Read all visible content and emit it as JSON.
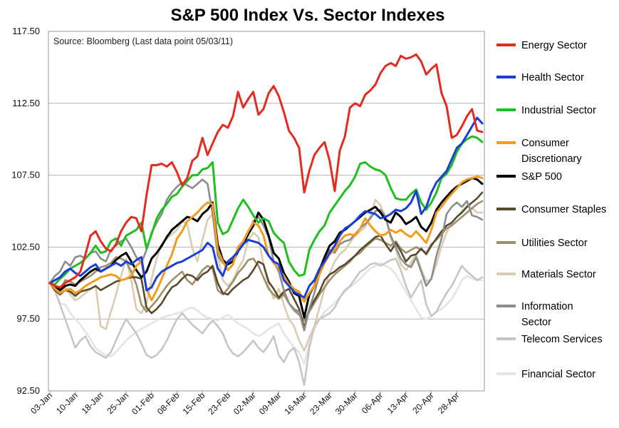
{
  "chart_data": {
    "type": "line",
    "title": "S&P 500 Index Vs. Sector Indexes",
    "annotation": "Source: Bloomberg (Last data point 05/03/11)",
    "ylim": [
      92.5,
      117.5
    ],
    "y_ticks": [
      "117.50",
      "112.50",
      "107.50",
      "102.50",
      "97.50",
      "92.50"
    ],
    "y_tick_values": [
      117.5,
      112.5,
      107.5,
      102.5,
      97.5,
      92.5
    ],
    "x_count": 86,
    "x_tick_labels": [
      "03-Jan",
      "10-Jan",
      "18-Jan",
      "25-Jan",
      "01-Feb",
      "08-Feb",
      "15-Feb",
      "23-Feb",
      "02-Mar",
      "09-Mar",
      "16-Mar",
      "23-Mar",
      "30-Mar",
      "06-Apr",
      "13-Apr",
      "20-Apr",
      "28-Apr"
    ],
    "x_tick_index": [
      0,
      5,
      10,
      15,
      20,
      25,
      30,
      35,
      40,
      45,
      50,
      55,
      60,
      65,
      70,
      75,
      80
    ],
    "series": [
      {
        "name": "Financial Sector",
        "legend": [
          "Financial Sector"
        ],
        "color": "#e4e4e4",
        "values": [
          100,
          99.4,
          98.6,
          98.5,
          97.9,
          97.5,
          97.1,
          96.6,
          96.1,
          95.5,
          95.2,
          95,
          94.9,
          95.2,
          95.6,
          96,
          96.3,
          96.6,
          96.8,
          97,
          97.2,
          97.4,
          97.6,
          97.7,
          97.8,
          97.9,
          98,
          98.2,
          98.3,
          98.1,
          97.8,
          97.6,
          97.5,
          97.4,
          97.6,
          97.8,
          97.5,
          97.2,
          97,
          96.8,
          96.5,
          96.3,
          96.5,
          96.8,
          97,
          97.2,
          96.5,
          96,
          95.5,
          95.2,
          94.4,
          95.8,
          96.8,
          97.5,
          98,
          98.3,
          98.6,
          99,
          99.4,
          99.7,
          100,
          100.3,
          100.7,
          101,
          101.2,
          101.4,
          101.2,
          101,
          100.6,
          100,
          99.4,
          98.8,
          98.2,
          97.6,
          97.5,
          97.7,
          98,
          98.2,
          98.5,
          98.9,
          99.5,
          100.2,
          100.5,
          100.3,
          100.2,
          100.2
        ]
      },
      {
        "name": "Telecom Services",
        "legend": [
          "Telecom Services"
        ],
        "color": "#c6c6c6",
        "values": [
          100,
          99.5,
          98.5,
          97.5,
          96.5,
          95.5,
          96,
          96.3,
          95.6,
          95.2,
          95,
          94.8,
          95.2,
          96,
          96.8,
          97.5,
          97,
          96.5,
          95.8,
          95,
          94.8,
          95,
          95.4,
          96,
          96.8,
          97.5,
          97.9,
          97.5,
          97.1,
          96.8,
          96.5,
          97,
          97.4,
          97,
          96.5,
          95.6,
          95.1,
          94.9,
          95.2,
          95.6,
          96,
          95.5,
          95.2,
          95.7,
          96.3,
          95,
          94.5,
          95.2,
          95.5,
          94.5,
          92.9,
          95.5,
          97,
          97.5,
          97.7,
          97.9,
          98.3,
          99,
          99.5,
          99.8,
          100.3,
          100.8,
          101,
          101.3,
          101.4,
          101.2,
          101.4,
          101.6,
          101.7,
          100.9,
          99.8,
          99,
          99.6,
          100.2,
          98.5,
          97.7,
          98,
          98.7,
          99.3,
          99.8,
          100.5,
          101.2,
          100.8,
          100.5,
          100.2,
          100.4
        ]
      },
      {
        "name": "Materials Sector",
        "legend": [
          "Materials Sector"
        ],
        "color": "#d8cdae",
        "values": [
          100,
          99.8,
          99.4,
          99.7,
          99.2,
          98.8,
          99,
          99.3,
          99.6,
          99.8,
          97,
          96.8,
          98,
          99.2,
          100.5,
          101.7,
          100.2,
          98.2,
          97.9,
          98.6,
          100.3,
          101.7,
          102.7,
          103.1,
          103.4,
          103.7,
          104.3,
          104.1,
          102.4,
          101.5,
          103,
          104.4,
          104.8,
          101.9,
          100.2,
          99.8,
          100.2,
          101,
          101.6,
          103,
          103.5,
          103.2,
          101.3,
          99.8,
          98.9,
          99.6,
          98.5,
          97.5,
          97,
          96,
          95.3,
          96.2,
          97,
          98.3,
          99.6,
          100.7,
          101.5,
          102,
          102.3,
          102.8,
          103.3,
          103.6,
          103.9,
          104.7,
          105.8,
          105.4,
          104.6,
          103.1,
          102.3,
          101.3,
          100.9,
          101.4,
          102,
          101,
          100.1,
          100.3,
          101.3,
          102.6,
          103.5,
          104.2,
          104.6,
          105,
          105.4,
          105.2,
          104.9,
          104.9
        ]
      },
      {
        "name": "Utilities Sector",
        "legend": [
          "Utilities Sector"
        ],
        "color": "#9f8e69",
        "values": [
          100,
          99.8,
          99.5,
          100.2,
          100.1,
          99.9,
          100.1,
          100.3,
          100.5,
          100.8,
          101.1,
          101.2,
          101.4,
          101.8,
          101.7,
          101.5,
          100.8,
          99.9,
          98.5,
          98,
          98.4,
          98.8,
          99.3,
          99.8,
          100.2,
          100.5,
          100.8,
          100.2,
          99.9,
          100.4,
          100.9,
          101.2,
          101,
          99.5,
          99.2,
          99.6,
          100.1,
          100.7,
          101.1,
          101.6,
          101.7,
          101.2,
          100.4,
          99.6,
          99.2,
          98.9,
          99.2,
          98.6,
          98.1,
          97.8,
          97.4,
          98,
          98.6,
          99.2,
          99.7,
          100.2,
          100.6,
          100.9,
          101.2,
          101.5,
          101.9,
          102.1,
          102.5,
          102.8,
          103.1,
          103,
          102.8,
          102.6,
          102.9,
          102.4,
          102.1,
          102.3,
          102.5,
          102.3,
          102.1,
          102.7,
          103,
          103.4,
          103.8,
          104,
          104.3,
          104.6,
          104.9,
          105.2,
          105.5,
          105.7
        ]
      },
      {
        "name": "Consumer Staples",
        "legend": [
          "Consumer Staples"
        ],
        "color": "#5a4a2c",
        "values": [
          100,
          99.5,
          99.2,
          99.5,
          99.4,
          99.1,
          99.4,
          99.5,
          99.6,
          99.8,
          99.5,
          99.7,
          99.9,
          100.1,
          100.2,
          100.3,
          100.4,
          100.4,
          100.3,
          98.3,
          97.9,
          98.2,
          98.6,
          99.2,
          99.7,
          99.9,
          100.3,
          100.6,
          100.5,
          100.2,
          100.6,
          100.8,
          101.2,
          100,
          99.3,
          99.2,
          99.6,
          99.9,
          100.2,
          100.4,
          100.9,
          101.5,
          101.3,
          100.1,
          99.6,
          99,
          99.4,
          99.6,
          98.9,
          98.2,
          96.9,
          98.2,
          98.8,
          99.4,
          100.2,
          100.6,
          100.8,
          101.1,
          101.3,
          101.6,
          101.9,
          102.3,
          102.6,
          102.9,
          103.2,
          103.3,
          102.7,
          102.2,
          102.8,
          102.2,
          101.5,
          101.9,
          102,
          102.4,
          102,
          102.6,
          103.1,
          103.6,
          104,
          104.2,
          104.6,
          104.9,
          105.3,
          105.6,
          105.9,
          106.3
        ]
      },
      {
        "name": "Information Sector",
        "legend": [
          "Information",
          "Sector"
        ],
        "color": "#8c8c8c",
        "values": [
          100,
          100.5,
          100.8,
          101.5,
          101.2,
          101.8,
          101.9,
          101.7,
          102.1,
          102.2,
          101.7,
          101.5,
          102.3,
          102.6,
          102.9,
          103.1,
          102.5,
          101.8,
          101.4,
          102.3,
          103.5,
          104.2,
          104.8,
          105.8,
          106.3,
          106.7,
          107,
          106.8,
          106.6,
          106.9,
          107.2,
          106.9,
          104.8,
          101.9,
          101.4,
          101.3,
          101.7,
          102.3,
          102.7,
          103.5,
          104.3,
          104.6,
          104,
          103.2,
          101.5,
          100.8,
          99.5,
          98.6,
          98.2,
          98,
          96.7,
          98.2,
          99.3,
          100.6,
          101.5,
          102.3,
          102.1,
          102.7,
          102.9,
          103,
          103.4,
          103.8,
          104.1,
          104.5,
          105,
          105.1,
          104.6,
          103.3,
          102.5,
          101.7,
          101.3,
          101.1,
          101.8,
          100.8,
          99.8,
          100.3,
          101.9,
          103.1,
          104.8,
          105.3,
          105.6,
          105.3,
          105.7,
          104.7,
          104.6,
          104.4
        ]
      },
      {
        "name": "S&P 500",
        "legend": [
          "S&P 500"
        ],
        "color": "#000000",
        "values": [
          100,
          99.8,
          99.5,
          99.8,
          99.9,
          99.8,
          100.2,
          100.5,
          100.8,
          101,
          100.8,
          101,
          101.2,
          101.6,
          101.9,
          102.1,
          101.5,
          100.9,
          100.4,
          100.8,
          101.7,
          102.1,
          102.6,
          103.2,
          103.7,
          104,
          104.3,
          104.6,
          104.5,
          104.3,
          104.8,
          105.1,
          105.6,
          102.7,
          101.6,
          101.3,
          101.5,
          102.2,
          102.7,
          103.4,
          104,
          104.9,
          104.4,
          103.3,
          102.1,
          101.7,
          100.7,
          100.1,
          99.3,
          99.1,
          97.6,
          99.2,
          99.8,
          100.9,
          101.8,
          102.6,
          102.9,
          103.5,
          103.7,
          104,
          104.3,
          104.6,
          104.9,
          105.1,
          105.3,
          104.9,
          104.4,
          104.2,
          104.9,
          104.6,
          104.1,
          104.3,
          104.6,
          103.9,
          103.6,
          104.2,
          105.1,
          105.6,
          106,
          106.4,
          106.7,
          106.9,
          107.1,
          107.3,
          107.2,
          106.9
        ]
      },
      {
        "name": "Consumer Discretionary",
        "legend": [
          "Consumer",
          "Discretionary"
        ],
        "color": "#f49b1e",
        "values": [
          100,
          99.6,
          99.3,
          99.5,
          99.6,
          99.3,
          99.5,
          99.8,
          100,
          100.2,
          100.4,
          100.5,
          100.6,
          100.5,
          100.2,
          100.3,
          100.5,
          101.2,
          101.5,
          99.6,
          98.8,
          99.5,
          100.3,
          101.2,
          102,
          103.1,
          103.6,
          104.3,
          104.6,
          104.9,
          105.3,
          105.6,
          105.5,
          102.3,
          101.5,
          100.9,
          101.3,
          102.5,
          102.9,
          103.6,
          104.2,
          104,
          103.3,
          101.9,
          101.4,
          101,
          100.5,
          99.9,
          99.6,
          99.4,
          98.7,
          99.3,
          99.8,
          100.6,
          101.4,
          102,
          102.3,
          102.9,
          103.3,
          103.4,
          103.3,
          103.8,
          104.5,
          104,
          103.6,
          103.3,
          103.4,
          103.7,
          103.5,
          103.7,
          103.4,
          103.2,
          103.6,
          103.2,
          102.8,
          103.7,
          104.9,
          105.3,
          105.8,
          106.2,
          106.6,
          107,
          107.2,
          107.3,
          107.4,
          107.3
        ]
      },
      {
        "name": "Industrial Sector",
        "legend": [
          "Industrial Sector"
        ],
        "color": "#1fbf1f",
        "values": [
          100,
          99.9,
          100.3,
          100.6,
          101,
          101.2,
          101.4,
          101.7,
          102.1,
          102.6,
          102.1,
          102.2,
          102.9,
          103.1,
          102.6,
          103.3,
          103.5,
          103.7,
          104.2,
          102.4,
          103.4,
          104.5,
          105.1,
          105.5,
          106,
          106.2,
          106.7,
          107.1,
          107.5,
          107.5,
          107.9,
          108,
          108.4,
          104.2,
          103.4,
          103.6,
          104.4,
          105.2,
          105.8,
          105.3,
          104.7,
          104.2,
          104.5,
          104.3,
          103.5,
          103.1,
          102.8,
          101.5,
          100.9,
          100.5,
          100.6,
          102.3,
          103,
          103.6,
          104,
          104.9,
          105.4,
          105.9,
          106.4,
          106.8,
          107.4,
          108.3,
          108.4,
          108.1,
          107.9,
          107.8,
          107.5,
          106.6,
          105.9,
          105.8,
          105.8,
          106.2,
          106.5,
          105.6,
          105.1,
          105.6,
          106.3,
          107.3,
          107.6,
          108.2,
          109.1,
          109.7,
          110,
          110.2,
          110.1,
          109.8
        ]
      },
      {
        "name": "Health Sector",
        "legend": [
          "Health Sector"
        ],
        "color": "#1a3fd9",
        "values": [
          100,
          100.2,
          100.4,
          100.8,
          101,
          100.7,
          100.5,
          100.8,
          101.1,
          101.3,
          100.8,
          101,
          101.2,
          101.4,
          101.2,
          101.5,
          101.3,
          101.6,
          101.8,
          99.5,
          99.7,
          100.4,
          100.8,
          101,
          101.2,
          101.4,
          101.5,
          101.7,
          101.9,
          102.1,
          102.3,
          102.8,
          102.5,
          101,
          100.5,
          101.5,
          101.8,
          102.2,
          102.7,
          103,
          102.9,
          102.8,
          102.5,
          101.9,
          101.5,
          101.3,
          100.2,
          99.8,
          99.4,
          99.2,
          99,
          99.8,
          100.2,
          101,
          101.5,
          102.1,
          102.6,
          103.3,
          103.8,
          104,
          104.3,
          104.7,
          105,
          104.9,
          104.8,
          104.5,
          104.6,
          104.8,
          105.1,
          105,
          105.2,
          105.6,
          106.4,
          104.8,
          105.3,
          106.3,
          107,
          107.4,
          107.8,
          108.6,
          109.4,
          109.7,
          110.3,
          110.9,
          111.5,
          111.1
        ]
      },
      {
        "name": "Energy Sector",
        "legend": [
          "Energy Sector"
        ],
        "color": "#e52b1f",
        "values": [
          100,
          99.8,
          99.7,
          100,
          100.2,
          100.4,
          100.8,
          102,
          103.3,
          103.6,
          102.9,
          102.4,
          102.2,
          102.7,
          103.6,
          104.2,
          104.6,
          104.5,
          103.6,
          106.1,
          108.2,
          108.2,
          108.3,
          108.1,
          108.4,
          107.7,
          106.8,
          107.3,
          108.5,
          108.8,
          110.1,
          108.9,
          109.7,
          110.5,
          111,
          110.8,
          111.6,
          113.3,
          112.2,
          112.8,
          113.3,
          111.7,
          112.1,
          113.2,
          113.7,
          113,
          111.9,
          110.6,
          110.1,
          109.4,
          106.3,
          107.8,
          108.9,
          109.4,
          109.8,
          108.5,
          106.4,
          109.2,
          110.2,
          112.2,
          112.5,
          112.3,
          113.1,
          113.4,
          113.8,
          114.6,
          115.1,
          115.3,
          115.1,
          115.8,
          115.6,
          115.7,
          115.9,
          115.4,
          114.5,
          114.9,
          115.2,
          113.2,
          112.3,
          110.1,
          110.3,
          110.9,
          111.6,
          112.1,
          110.6,
          110.5
        ]
      }
    ]
  }
}
